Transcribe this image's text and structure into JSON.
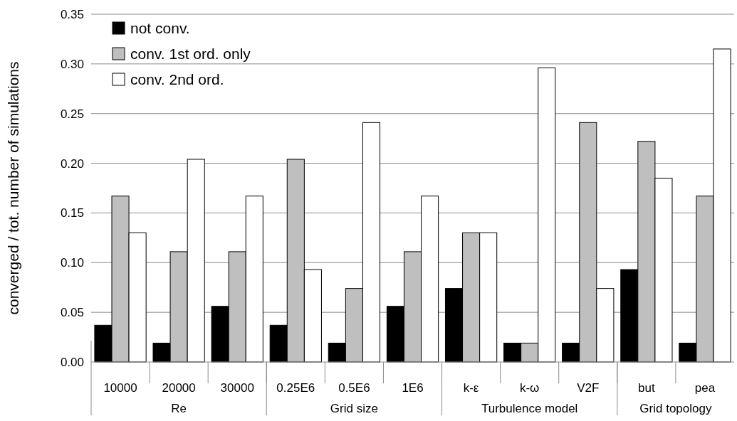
{
  "chart_data": {
    "type": "bar",
    "ylabel": "converged / tot. number of simulations",
    "categories": [
      "10000",
      "20000",
      "30000",
      "0.25E6",
      "0.5E6",
      "1E6",
      "k-ε",
      "k-ω",
      "V2F",
      "but",
      "pea"
    ],
    "series": [
      {
        "name": "not conv.",
        "color": "#000000",
        "values": [
          0.037,
          0.019,
          0.056,
          0.037,
          0.019,
          0.056,
          0.074,
          0.019,
          0.019,
          0.093,
          0.019
        ]
      },
      {
        "name": "conv. 1st ord. only",
        "color": "#bfbfbf",
        "values": [
          0.167,
          0.111,
          0.111,
          0.204,
          0.074,
          0.111,
          0.13,
          0.019,
          0.241,
          0.222,
          0.167
        ]
      },
      {
        "name": "conv. 2nd ord.",
        "color": "#ffffff",
        "values": [
          0.13,
          0.204,
          0.167,
          0.093,
          0.241,
          0.167,
          0.13,
          0.296,
          0.074,
          0.185,
          0.315
        ]
      }
    ],
    "annotations": [
      "Re",
      "Grid size",
      "Turbulence model",
      "Grid topology"
    ],
    "ylim": [
      0,
      0.35
    ],
    "yticks": [
      {
        "value": 0,
        "label": "0.00"
      },
      {
        "value": 0.05,
        "label": "0.05"
      },
      {
        "value": 0.1,
        "label": "0.10"
      },
      {
        "value": 0.15,
        "label": "0.15"
      },
      {
        "value": 0.2,
        "label": "0.20"
      },
      {
        "value": 0.25,
        "label": "0.25"
      },
      {
        "value": 0.3,
        "label": "0.30"
      },
      {
        "value": 0.35,
        "label": "0.35"
      }
    ],
    "grid": "y",
    "legend": "top left"
  }
}
